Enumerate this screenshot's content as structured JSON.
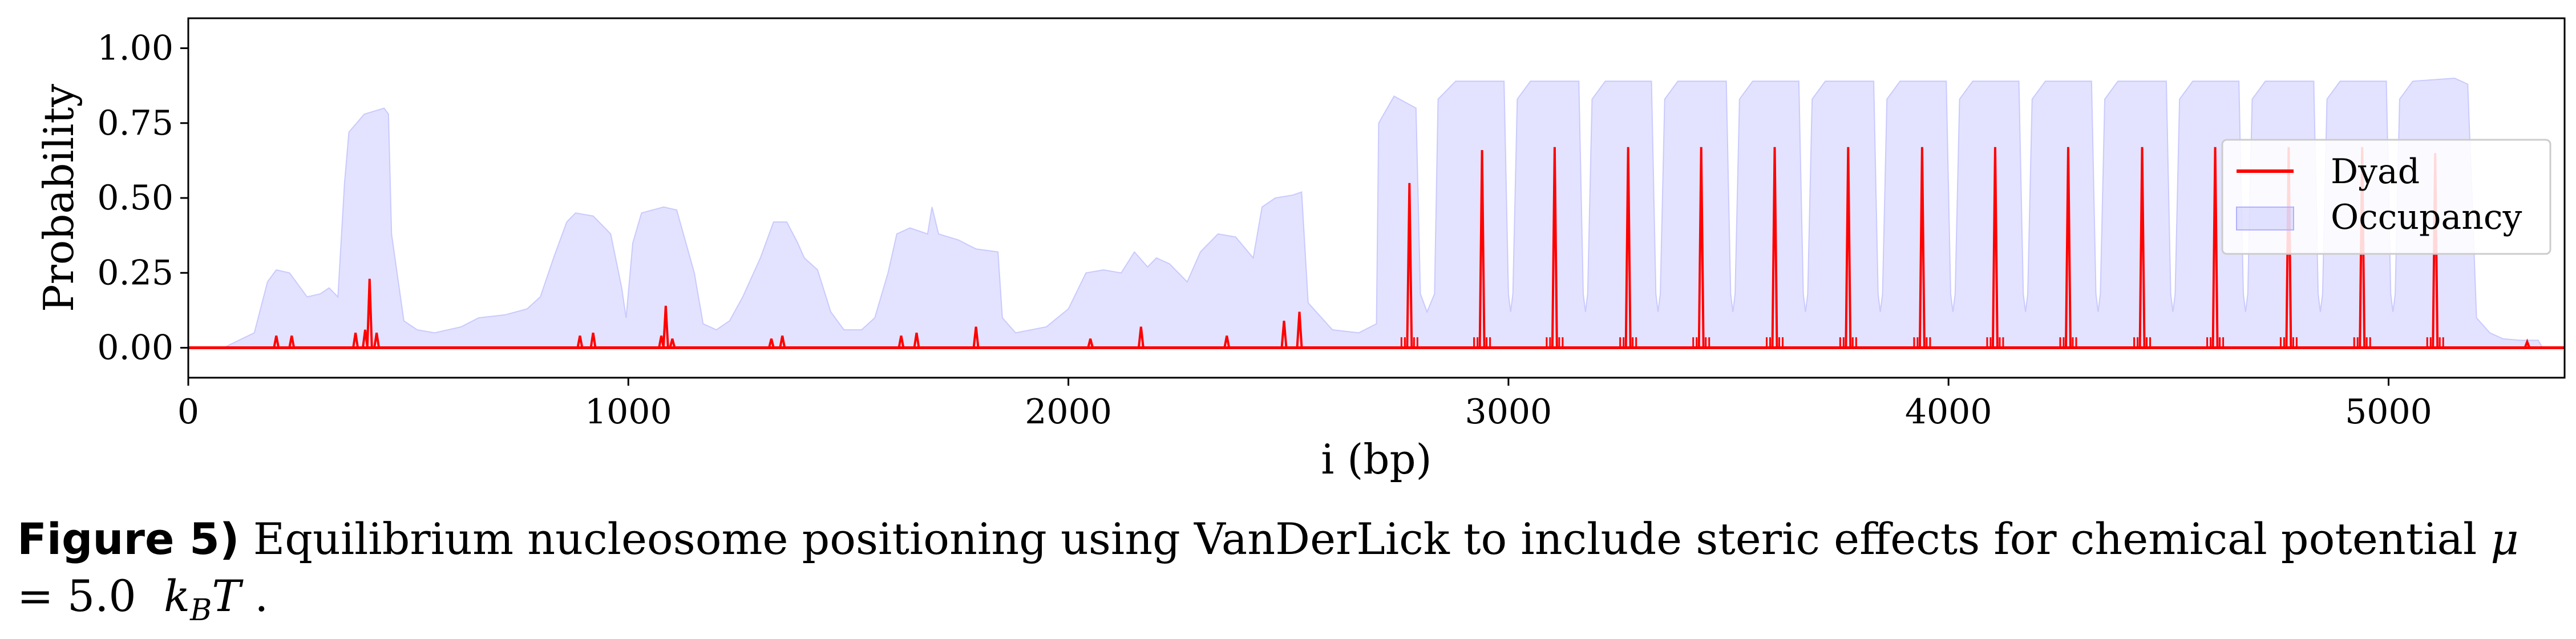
{
  "chart_data": {
    "type": "line",
    "xlabel": "i (bp)",
    "ylabel": "Probability",
    "xlim": [
      0,
      5400
    ],
    "ylim": [
      -0.1,
      1.1
    ],
    "xticks": [
      0,
      1000,
      2000,
      3000,
      4000,
      5000
    ],
    "xtick_labels": [
      "0",
      "1000",
      "2000",
      "3000",
      "4000",
      "5000"
    ],
    "yticks": [
      0.0,
      0.25,
      0.5,
      0.75,
      1.0
    ],
    "ytick_labels": [
      "0.00",
      "0.25",
      "0.50",
      "0.75",
      "1.00"
    ],
    "legend_position": "right",
    "series": [
      {
        "name": "Dyad",
        "kind": "line",
        "color": "#ff0000",
        "baseline": 0.0,
        "peaks": [
          [
            200,
            0.04
          ],
          [
            235,
            0.04
          ],
          [
            380,
            0.05
          ],
          [
            402,
            0.06
          ],
          [
            412,
            0.23
          ],
          [
            428,
            0.05
          ],
          [
            890,
            0.04
          ],
          [
            920,
            0.05
          ],
          [
            1075,
            0.04
          ],
          [
            1085,
            0.14
          ],
          [
            1100,
            0.03
          ],
          [
            1325,
            0.03
          ],
          [
            1350,
            0.04
          ],
          [
            1620,
            0.04
          ],
          [
            1655,
            0.05
          ],
          [
            1790,
            0.07
          ],
          [
            2050,
            0.03
          ],
          [
            2165,
            0.07
          ],
          [
            2360,
            0.04
          ],
          [
            2490,
            0.09
          ],
          [
            2525,
            0.12
          ],
          [
            2775,
            0.55
          ],
          [
            2940,
            0.66
          ],
          [
            3105,
            0.67
          ],
          [
            3272,
            0.67
          ],
          [
            3438,
            0.67
          ],
          [
            3605,
            0.67
          ],
          [
            3772,
            0.67
          ],
          [
            3940,
            0.67
          ],
          [
            4106,
            0.67
          ],
          [
            4272,
            0.67
          ],
          [
            4440,
            0.67
          ],
          [
            4606,
            0.67
          ],
          [
            4773,
            0.67
          ],
          [
            4940,
            0.67
          ],
          [
            5106,
            0.65
          ],
          [
            5315,
            0.02
          ]
        ]
      },
      {
        "name": "Occupancy",
        "kind": "area",
        "color": "#b0b0ff",
        "points": [
          [
            0,
            0.0
          ],
          [
            80,
            0.0
          ],
          [
            150,
            0.05
          ],
          [
            180,
            0.22
          ],
          [
            200,
            0.26
          ],
          [
            230,
            0.25
          ],
          [
            270,
            0.17
          ],
          [
            300,
            0.18
          ],
          [
            320,
            0.2
          ],
          [
            340,
            0.17
          ],
          [
            355,
            0.55
          ],
          [
            365,
            0.72
          ],
          [
            400,
            0.78
          ],
          [
            445,
            0.8
          ],
          [
            455,
            0.78
          ],
          [
            462,
            0.38
          ],
          [
            490,
            0.09
          ],
          [
            520,
            0.06
          ],
          [
            560,
            0.05
          ],
          [
            620,
            0.07
          ],
          [
            660,
            0.1
          ],
          [
            720,
            0.11
          ],
          [
            770,
            0.13
          ],
          [
            800,
            0.17
          ],
          [
            830,
            0.3
          ],
          [
            860,
            0.42
          ],
          [
            880,
            0.45
          ],
          [
            920,
            0.44
          ],
          [
            960,
            0.38
          ],
          [
            985,
            0.2
          ],
          [
            995,
            0.1
          ],
          [
            1010,
            0.35
          ],
          [
            1030,
            0.45
          ],
          [
            1080,
            0.47
          ],
          [
            1110,
            0.46
          ],
          [
            1150,
            0.25
          ],
          [
            1170,
            0.08
          ],
          [
            1200,
            0.06
          ],
          [
            1230,
            0.09
          ],
          [
            1260,
            0.17
          ],
          [
            1300,
            0.3
          ],
          [
            1330,
            0.42
          ],
          [
            1360,
            0.42
          ],
          [
            1385,
            0.35
          ],
          [
            1400,
            0.3
          ],
          [
            1430,
            0.26
          ],
          [
            1460,
            0.12
          ],
          [
            1490,
            0.06
          ],
          [
            1530,
            0.06
          ],
          [
            1560,
            0.1
          ],
          [
            1590,
            0.25
          ],
          [
            1610,
            0.38
          ],
          [
            1640,
            0.4
          ],
          [
            1680,
            0.38
          ],
          [
            1690,
            0.47
          ],
          [
            1705,
            0.38
          ],
          [
            1750,
            0.36
          ],
          [
            1790,
            0.33
          ],
          [
            1840,
            0.32
          ],
          [
            1850,
            0.1
          ],
          [
            1880,
            0.05
          ],
          [
            1950,
            0.07
          ],
          [
            2000,
            0.13
          ],
          [
            2040,
            0.25
          ],
          [
            2080,
            0.26
          ],
          [
            2120,
            0.25
          ],
          [
            2150,
            0.32
          ],
          [
            2180,
            0.27
          ],
          [
            2200,
            0.3
          ],
          [
            2230,
            0.28
          ],
          [
            2270,
            0.22
          ],
          [
            2300,
            0.32
          ],
          [
            2340,
            0.38
          ],
          [
            2380,
            0.37
          ],
          [
            2420,
            0.3
          ],
          [
            2440,
            0.47
          ],
          [
            2470,
            0.5
          ],
          [
            2510,
            0.51
          ],
          [
            2530,
            0.52
          ],
          [
            2545,
            0.15
          ],
          [
            2600,
            0.06
          ],
          [
            2660,
            0.05
          ],
          [
            2700,
            0.08
          ],
          [
            2705,
            0.75
          ],
          [
            2740,
            0.84
          ],
          [
            2790,
            0.8
          ],
          [
            2800,
            0.18
          ],
          [
            2815,
            0.12
          ],
          [
            2832,
            0.18
          ],
          [
            2840,
            0.83
          ],
          [
            2880,
            0.89
          ],
          [
            2990,
            0.89
          ],
          [
            3000,
            0.18
          ],
          [
            3005,
            0.12
          ],
          [
            3010,
            0.18
          ],
          [
            3020,
            0.83
          ],
          [
            3050,
            0.89
          ],
          [
            3160,
            0.89
          ],
          [
            3170,
            0.18
          ],
          [
            3175,
            0.12
          ],
          [
            3180,
            0.18
          ],
          [
            3190,
            0.83
          ],
          [
            3220,
            0.89
          ],
          [
            3325,
            0.89
          ],
          [
            3335,
            0.18
          ],
          [
            3340,
            0.12
          ],
          [
            3345,
            0.18
          ],
          [
            3355,
            0.83
          ],
          [
            3385,
            0.89
          ],
          [
            3495,
            0.89
          ],
          [
            3505,
            0.18
          ],
          [
            3510,
            0.12
          ],
          [
            3515,
            0.18
          ],
          [
            3525,
            0.83
          ],
          [
            3555,
            0.89
          ],
          [
            3660,
            0.89
          ],
          [
            3670,
            0.18
          ],
          [
            3675,
            0.12
          ],
          [
            3680,
            0.18
          ],
          [
            3690,
            0.83
          ],
          [
            3720,
            0.89
          ],
          [
            3830,
            0.89
          ],
          [
            3840,
            0.18
          ],
          [
            3845,
            0.12
          ],
          [
            3850,
            0.18
          ],
          [
            3860,
            0.83
          ],
          [
            3890,
            0.89
          ],
          [
            3995,
            0.89
          ],
          [
            4005,
            0.18
          ],
          [
            4010,
            0.12
          ],
          [
            4015,
            0.18
          ],
          [
            4025,
            0.83
          ],
          [
            4055,
            0.89
          ],
          [
            4160,
            0.89
          ],
          [
            4170,
            0.18
          ],
          [
            4175,
            0.12
          ],
          [
            4180,
            0.18
          ],
          [
            4190,
            0.83
          ],
          [
            4220,
            0.89
          ],
          [
            4325,
            0.89
          ],
          [
            4335,
            0.18
          ],
          [
            4340,
            0.12
          ],
          [
            4345,
            0.18
          ],
          [
            4355,
            0.83
          ],
          [
            4385,
            0.89
          ],
          [
            4495,
            0.89
          ],
          [
            4505,
            0.18
          ],
          [
            4510,
            0.12
          ],
          [
            4515,
            0.18
          ],
          [
            4525,
            0.83
          ],
          [
            4555,
            0.89
          ],
          [
            4660,
            0.89
          ],
          [
            4670,
            0.18
          ],
          [
            4675,
            0.12
          ],
          [
            4680,
            0.18
          ],
          [
            4690,
            0.83
          ],
          [
            4720,
            0.89
          ],
          [
            4830,
            0.89
          ],
          [
            4840,
            0.18
          ],
          [
            4845,
            0.12
          ],
          [
            4850,
            0.18
          ],
          [
            4860,
            0.83
          ],
          [
            4890,
            0.89
          ],
          [
            4995,
            0.89
          ],
          [
            5005,
            0.18
          ],
          [
            5010,
            0.12
          ],
          [
            5015,
            0.18
          ],
          [
            5025,
            0.83
          ],
          [
            5055,
            0.89
          ],
          [
            5150,
            0.9
          ],
          [
            5180,
            0.88
          ],
          [
            5200,
            0.1
          ],
          [
            5230,
            0.05
          ],
          [
            5260,
            0.03
          ],
          [
            5300,
            0.025
          ],
          [
            5340,
            0.025
          ],
          [
            5350,
            0.0
          ]
        ]
      }
    ]
  },
  "caption": {
    "lead": "Figure 5)",
    "text": " Equilibrium nucleosome positioning using VanDerLick to include steric effects for chemical potential ",
    "mu": "μ",
    "equals": " = ",
    "value": "5.0",
    "k": "k",
    "sub": "B",
    "T": "T",
    "end": " ."
  }
}
